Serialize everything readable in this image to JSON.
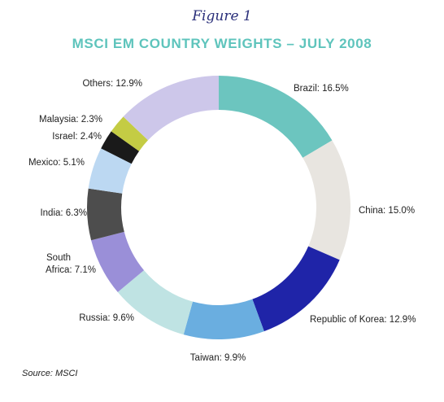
{
  "figure_label": "Figure 1",
  "source": "Source: MSCI",
  "chart_data": {
    "type": "pie",
    "title": "MSCI EM COUNTRY WEIGHTS – JULY 2008",
    "donut": true,
    "slices": [
      {
        "label": "Brazil: 16.5%",
        "category": "Brazil",
        "value": 16.5,
        "color": "#6cc5bf"
      },
      {
        "label": "China: 15.0%",
        "category": "China",
        "value": 15.0,
        "color": "#e8e5e0"
      },
      {
        "label": "Republic of Korea: 12.9%",
        "category": "Republic of Korea",
        "value": 12.9,
        "color": "#1f24a8"
      },
      {
        "label": "Taiwan: 9.9%",
        "category": "Taiwan",
        "value": 9.9,
        "color": "#6aaee0"
      },
      {
        "label": "Russia: 9.6%",
        "category": "Russia",
        "value": 9.6,
        "color": "#bfe3e3"
      },
      {
        "label": "South Africa: 7.1%",
        "category": "South Africa",
        "value": 7.1,
        "color": "#9a8fd8"
      },
      {
        "label": "India: 6.3%",
        "category": "India",
        "value": 6.3,
        "color": "#4d4d4d"
      },
      {
        "label": "Mexico: 5.1%",
        "category": "Mexico",
        "value": 5.1,
        "color": "#bcd8f2"
      },
      {
        "label": "Israel: 2.4%",
        "category": "Israel",
        "value": 2.4,
        "color": "#1a1a1a"
      },
      {
        "label": "Malaysia: 2.3%",
        "category": "Malaysia",
        "value": 2.3,
        "color": "#c4cc44"
      },
      {
        "label": "Others: 12.9%",
        "category": "Others",
        "value": 12.9,
        "color": "#cdc7ea"
      }
    ]
  }
}
